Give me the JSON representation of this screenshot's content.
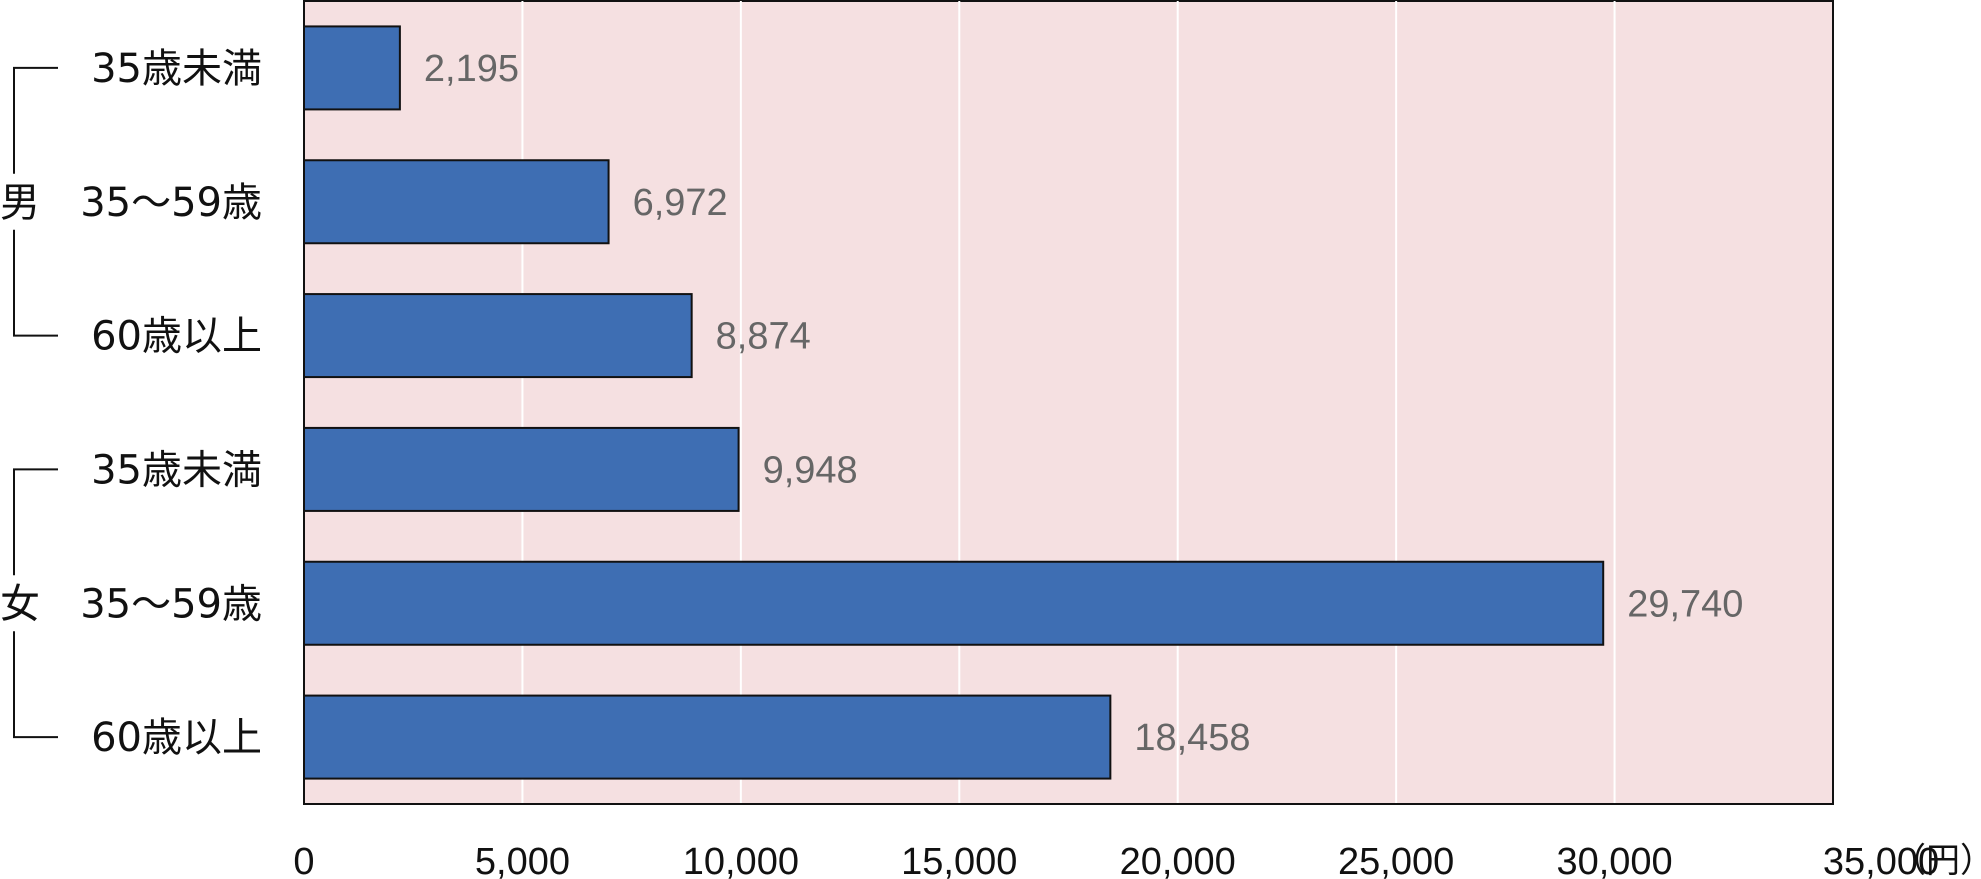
{
  "chart_data": {
    "type": "bar",
    "orientation": "horizontal",
    "groups": [
      {
        "label": "男",
        "categories": [
          "35歳未満",
          "35～59歳",
          "60歳以上"
        ]
      },
      {
        "label": "女",
        "categories": [
          "35歳未満",
          "35～59歳",
          "60歳以上"
        ]
      }
    ],
    "categories": [
      "35歳未満",
      "35～59歳",
      "60歳以上",
      "35歳未満",
      "35～59歳",
      "60歳以上"
    ],
    "values": [
      2195,
      6972,
      8874,
      9948,
      29740,
      18458
    ],
    "data_labels": [
      "2,195",
      "6,972",
      "8,874",
      "9,948",
      "29,740",
      "18,458"
    ],
    "xlim": [
      0,
      35000
    ],
    "x_ticks": [
      "0",
      "5,000",
      "10,000",
      "15,000",
      "20,000",
      "25,000",
      "30,000",
      "35,000"
    ],
    "x_unit": "（円）",
    "grid": true,
    "colors": {
      "bar": "#3e6eb3",
      "bar_border": "#111111",
      "plot_bg": "#f5e0e1",
      "gridline": "#ffffff",
      "data_label": "#666666"
    }
  }
}
